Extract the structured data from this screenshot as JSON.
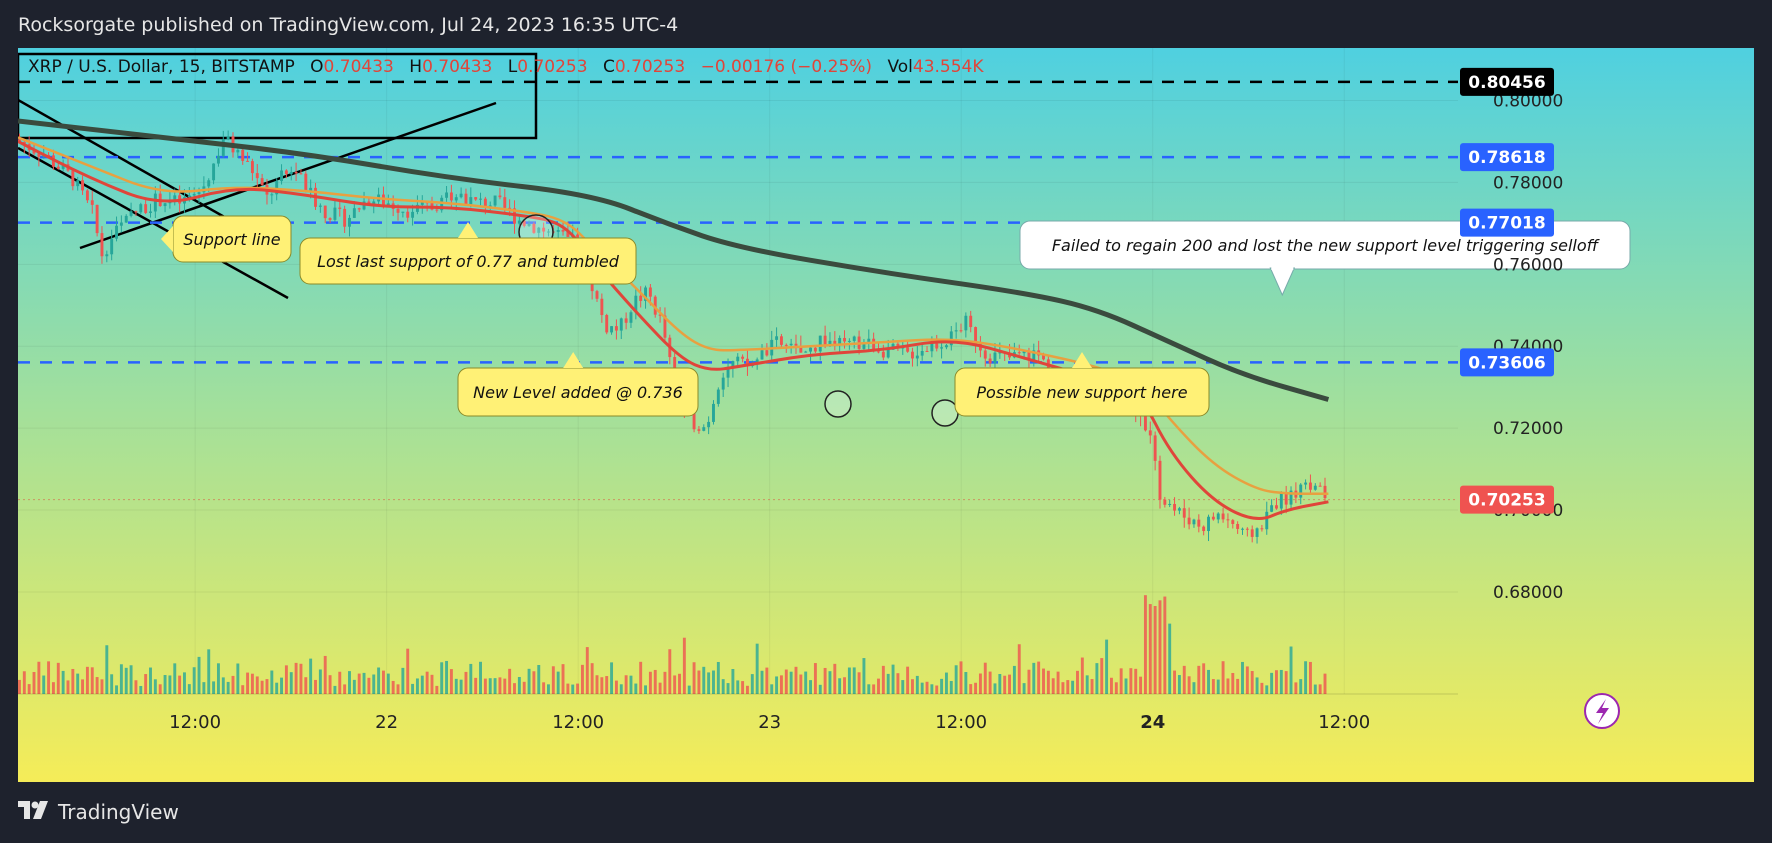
{
  "header": {
    "publisher": "Rocksorgate published on TradingView.com, Jul 24, 2023 16:35 UTC-4"
  },
  "footer": {
    "brand": "TradingView"
  },
  "colors": {
    "up": "#26a69a",
    "down": "#ef5350",
    "sma200": "#3a4b3e",
    "ema_fast": "#e0453a",
    "ema_slow": "#e8a040",
    "level": "#2962ff"
  },
  "chart_data": {
    "type": "candlestick",
    "legend": {
      "symbol": "XRP / U.S. Dollar, 15, BITSTAMP",
      "o_label": "O",
      "o": "0.70433",
      "h_label": "H",
      "h": "0.70433",
      "l_label": "L",
      "l": "0.70253",
      "c_label": "C",
      "c": "0.70253",
      "change": "−0.00176 (−0.25%)",
      "vol_label": "Vol",
      "vol": "43.554K"
    },
    "x_ticks": [
      "12:00",
      "22",
      "12:00",
      "23",
      "12:00",
      "24",
      "12:00"
    ],
    "y_ticks": [
      "0.80000",
      "0.78000",
      "0.76000",
      "0.74000",
      "0.72000",
      "0.70000",
      "0.68000"
    ],
    "y_range": [
      0.6773,
      0.8055
    ],
    "price_levels": [
      {
        "label": "0.80456",
        "value": 0.80456,
        "style": "black"
      },
      {
        "label": "0.78618",
        "value": 0.78618,
        "style": "blue"
      },
      {
        "label": "0.77018",
        "value": 0.77018,
        "style": "blue"
      },
      {
        "label": "0.73606",
        "value": 0.73606,
        "style": "blue"
      },
      {
        "label": "0.70253",
        "value": 0.70253,
        "style": "red"
      }
    ],
    "annotations": [
      {
        "text": "Support line"
      },
      {
        "text": "Lost last support of 0.77 and tumbled"
      },
      {
        "text": "New Level added @ 0.736"
      },
      {
        "text": "Possible new support here"
      },
      {
        "text": "Failed to regain 200 and lost the new support level triggering selloff"
      }
    ],
    "close_path": [
      [
        0,
        0.7905
      ],
      [
        0.02,
        0.787
      ],
      [
        0.04,
        0.781
      ],
      [
        0.055,
        0.772
      ],
      [
        0.06,
        0.762
      ],
      [
        0.07,
        0.768
      ],
      [
        0.085,
        0.773
      ],
      [
        0.1,
        0.776
      ],
      [
        0.115,
        0.775
      ],
      [
        0.13,
        0.778
      ],
      [
        0.14,
        0.786
      ],
      [
        0.145,
        0.791
      ],
      [
        0.155,
        0.787
      ],
      [
        0.165,
        0.783
      ],
      [
        0.175,
        0.776
      ],
      [
        0.185,
        0.781
      ],
      [
        0.195,
        0.783
      ],
      [
        0.205,
        0.777
      ],
      [
        0.215,
        0.773
      ],
      [
        0.23,
        0.771
      ],
      [
        0.245,
        0.776
      ],
      [
        0.26,
        0.775
      ],
      [
        0.275,
        0.773
      ],
      [
        0.29,
        0.774
      ],
      [
        0.305,
        0.778
      ],
      [
        0.32,
        0.775
      ],
      [
        0.335,
        0.775
      ],
      [
        0.35,
        0.771
      ],
      [
        0.37,
        0.768
      ],
      [
        0.39,
        0.765
      ],
      [
        0.4,
        0.756
      ],
      [
        0.41,
        0.745
      ],
      [
        0.42,
        0.744
      ],
      [
        0.43,
        0.751
      ],
      [
        0.44,
        0.753
      ],
      [
        0.45,
        0.745
      ],
      [
        0.46,
        0.727
      ],
      [
        0.47,
        0.722
      ],
      [
        0.48,
        0.72
      ],
      [
        0.49,
        0.733
      ],
      [
        0.5,
        0.736
      ],
      [
        0.51,
        0.735
      ],
      [
        0.52,
        0.738
      ],
      [
        0.53,
        0.741
      ],
      [
        0.54,
        0.739
      ],
      [
        0.55,
        0.738
      ],
      [
        0.56,
        0.742
      ],
      [
        0.575,
        0.74
      ],
      [
        0.59,
        0.741
      ],
      [
        0.605,
        0.739
      ],
      [
        0.62,
        0.738
      ],
      [
        0.635,
        0.74
      ],
      [
        0.65,
        0.742
      ],
      [
        0.66,
        0.746
      ],
      [
        0.665,
        0.743
      ],
      [
        0.675,
        0.738
      ],
      [
        0.69,
        0.737
      ],
      [
        0.7,
        0.738
      ],
      [
        0.71,
        0.738
      ],
      [
        0.72,
        0.734
      ],
      [
        0.73,
        0.728
      ],
      [
        0.74,
        0.732
      ],
      [
        0.75,
        0.73
      ],
      [
        0.76,
        0.733
      ],
      [
        0.765,
        0.728
      ],
      [
        0.775,
        0.727
      ],
      [
        0.785,
        0.72
      ],
      [
        0.79,
        0.716
      ],
      [
        0.795,
        0.702
      ],
      [
        0.805,
        0.7
      ],
      [
        0.815,
        0.698
      ],
      [
        0.825,
        0.696
      ],
      [
        0.835,
        0.699
      ],
      [
        0.845,
        0.697
      ],
      [
        0.855,
        0.693
      ],
      [
        0.865,
        0.696
      ],
      [
        0.875,
        0.702
      ],
      [
        0.885,
        0.703
      ],
      [
        0.895,
        0.707
      ],
      [
        0.9,
        0.706
      ],
      [
        0.91,
        0.703
      ]
    ],
    "sma200_path": [
      [
        0,
        0.795
      ],
      [
        0.1,
        0.791
      ],
      [
        0.2,
        0.787
      ],
      [
        0.3,
        0.781
      ],
      [
        0.4,
        0.777
      ],
      [
        0.45,
        0.77
      ],
      [
        0.5,
        0.764
      ],
      [
        0.6,
        0.758
      ],
      [
        0.7,
        0.753
      ],
      [
        0.75,
        0.749
      ],
      [
        0.8,
        0.741
      ],
      [
        0.85,
        0.733
      ],
      [
        0.91,
        0.727
      ]
    ],
    "ema_fast_path": [
      [
        0,
        0.79
      ],
      [
        0.05,
        0.781
      ],
      [
        0.1,
        0.774
      ],
      [
        0.15,
        0.779
      ],
      [
        0.2,
        0.777
      ],
      [
        0.25,
        0.774
      ],
      [
        0.3,
        0.774
      ],
      [
        0.35,
        0.772
      ],
      [
        0.38,
        0.77
      ],
      [
        0.4,
        0.76
      ],
      [
        0.43,
        0.748
      ],
      [
        0.46,
        0.737
      ],
      [
        0.48,
        0.734
      ],
      [
        0.5,
        0.735
      ],
      [
        0.55,
        0.738
      ],
      [
        0.6,
        0.739
      ],
      [
        0.65,
        0.742
      ],
      [
        0.7,
        0.737
      ],
      [
        0.75,
        0.732
      ],
      [
        0.78,
        0.728
      ],
      [
        0.8,
        0.714
      ],
      [
        0.83,
        0.702
      ],
      [
        0.86,
        0.697
      ],
      [
        0.88,
        0.7
      ],
      [
        0.91,
        0.702
      ]
    ],
    "ema_slow_path": [
      [
        0,
        0.791
      ],
      [
        0.05,
        0.784
      ],
      [
        0.1,
        0.777
      ],
      [
        0.15,
        0.779
      ],
      [
        0.2,
        0.778
      ],
      [
        0.25,
        0.776
      ],
      [
        0.3,
        0.775
      ],
      [
        0.35,
        0.773
      ],
      [
        0.38,
        0.771
      ],
      [
        0.4,
        0.764
      ],
      [
        0.43,
        0.754
      ],
      [
        0.46,
        0.743
      ],
      [
        0.48,
        0.739
      ],
      [
        0.5,
        0.739
      ],
      [
        0.55,
        0.74
      ],
      [
        0.6,
        0.741
      ],
      [
        0.65,
        0.742
      ],
      [
        0.7,
        0.739
      ],
      [
        0.75,
        0.735
      ],
      [
        0.78,
        0.731
      ],
      [
        0.8,
        0.722
      ],
      [
        0.83,
        0.711
      ],
      [
        0.86,
        0.705
      ],
      [
        0.88,
        0.704
      ],
      [
        0.91,
        0.704
      ]
    ]
  }
}
